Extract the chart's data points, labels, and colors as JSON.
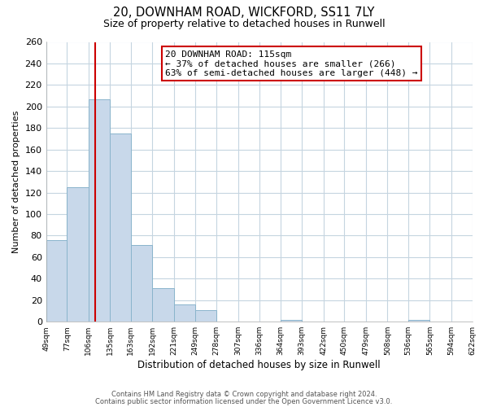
{
  "title1": "20, DOWNHAM ROAD, WICKFORD, SS11 7LY",
  "title2": "Size of property relative to detached houses in Runwell",
  "xlabel": "Distribution of detached houses by size in Runwell",
  "ylabel": "Number of detached properties",
  "bar_edges": [
    49,
    77,
    106,
    135,
    163,
    192,
    221,
    249,
    278,
    307,
    336,
    364,
    393,
    422,
    450,
    479,
    508,
    536,
    565,
    594,
    622
  ],
  "bar_heights": [
    76,
    125,
    207,
    175,
    71,
    31,
    16,
    11,
    0,
    0,
    0,
    2,
    0,
    0,
    0,
    0,
    0,
    2,
    0,
    0
  ],
  "bar_color": "#c8d8ea",
  "bar_edge_color": "#8ab4cc",
  "vline_x": 115,
  "vline_color": "#cc0000",
  "annotation_text": "20 DOWNHAM ROAD: 115sqm\n← 37% of detached houses are smaller (266)\n63% of semi-detached houses are larger (448) →",
  "annotation_box_color": "#ffffff",
  "annotation_box_edge_color": "#cc0000",
  "ylim": [
    0,
    260
  ],
  "yticks": [
    0,
    20,
    40,
    60,
    80,
    100,
    120,
    140,
    160,
    180,
    200,
    220,
    240,
    260
  ],
  "tick_labels": [
    "49sqm",
    "77sqm",
    "106sqm",
    "135sqm",
    "163sqm",
    "192sqm",
    "221sqm",
    "249sqm",
    "278sqm",
    "307sqm",
    "336sqm",
    "364sqm",
    "393sqm",
    "422sqm",
    "450sqm",
    "479sqm",
    "508sqm",
    "536sqm",
    "565sqm",
    "594sqm",
    "622sqm"
  ],
  "footer1": "Contains HM Land Registry data © Crown copyright and database right 2024.",
  "footer2": "Contains public sector information licensed under the Open Government Licence v3.0.",
  "bg_color": "#ffffff",
  "grid_color": "#c5d5e0"
}
